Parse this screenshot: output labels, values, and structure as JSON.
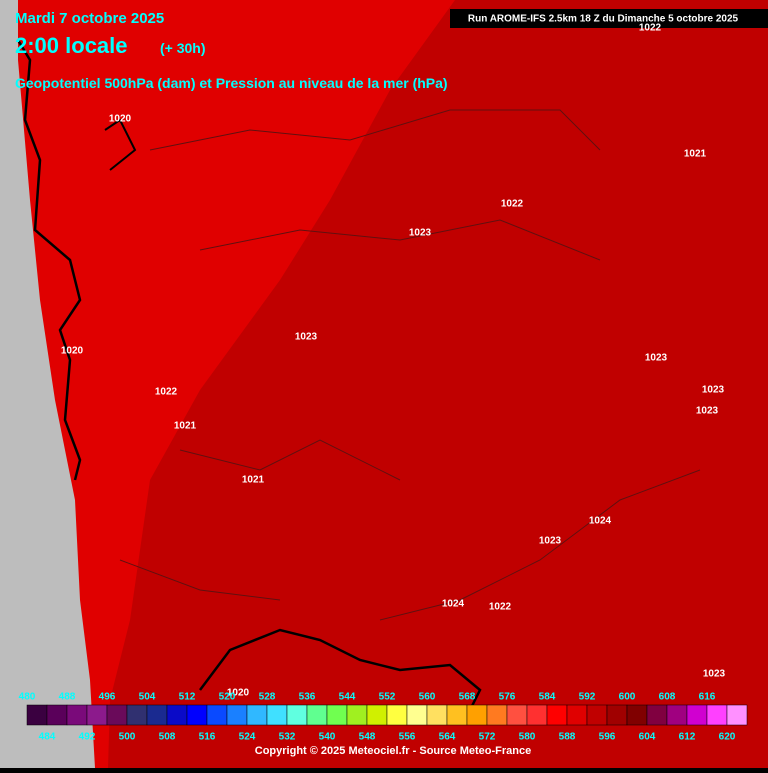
{
  "header": {
    "date": "Mardi 7 octobre 2025",
    "time": "2:00 locale",
    "lead": "(+ 30h)",
    "subtitle": "Geopotentiel 500hPa (dam) et Pression au niveau de la mer (hPa)",
    "run": "Run AROME-IFS 2.5km 18 Z du Dimanche 5 octobre 2025"
  },
  "pressure_labels": [
    "1022",
    "1020",
    "1021",
    "1022",
    "1023",
    "1023",
    "1020",
    "1023",
    "1022",
    "1023",
    "1023",
    "1021",
    "1021",
    "1024",
    "1023",
    "1024",
    "1022",
    "1023",
    "1020"
  ],
  "scale": {
    "values": [
      480,
      484,
      488,
      492,
      496,
      500,
      504,
      508,
      512,
      516,
      520,
      524,
      528,
      532,
      536,
      540,
      544,
      548,
      552,
      556,
      560,
      564,
      568,
      572,
      576,
      580,
      584,
      588,
      592,
      596,
      600,
      604,
      608,
      612,
      616,
      620
    ],
    "colors": [
      "#3a0040",
      "#5a005a",
      "#7a0a7a",
      "#8c1a8c",
      "#6a0a5a",
      "#303070",
      "#1a2a90",
      "#0a0ac8",
      "#0000ff",
      "#0a4aff",
      "#1a80ff",
      "#30b8ff",
      "#40e0ff",
      "#60ffe0",
      "#60ff90",
      "#70ff50",
      "#a0f020",
      "#d0f000",
      "#ffff40",
      "#ffff90",
      "#ffe060",
      "#ffc020",
      "#ffa000",
      "#ff7a20",
      "#ff5040",
      "#ff3030",
      "#ff0000",
      "#e00000",
      "#c00000",
      "#a00000",
      "#800000",
      "#800040",
      "#a00080",
      "#d000d0",
      "#ff40ff",
      "#ff90ff"
    ]
  },
  "footer": {
    "copyright": "Copyright © 2025 Meteociel.fr - Source Meteo-France"
  }
}
